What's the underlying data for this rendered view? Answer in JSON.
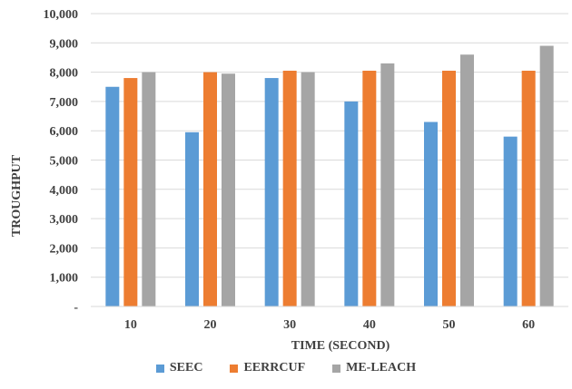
{
  "chart_data": {
    "type": "bar",
    "xlabel": "TIME (SECOND)",
    "ylabel": "TROUGHPUT",
    "categories": [
      "10",
      "20",
      "30",
      "40",
      "50",
      "60"
    ],
    "ylim": [
      0,
      10000
    ],
    "yticks": [
      {
        "value": 0,
        "label": "-"
      },
      {
        "value": 1000,
        "label": "1,000"
      },
      {
        "value": 2000,
        "label": "2,000"
      },
      {
        "value": 3000,
        "label": "3,000"
      },
      {
        "value": 4000,
        "label": "4,000"
      },
      {
        "value": 5000,
        "label": "5,000"
      },
      {
        "value": 6000,
        "label": "6,000"
      },
      {
        "value": 7000,
        "label": "7,000"
      },
      {
        "value": 8000,
        "label": "8,000"
      },
      {
        "value": 9000,
        "label": "9,000"
      },
      {
        "value": 10000,
        "label": "10,000"
      }
    ],
    "grid": true,
    "legend_position": "bottom",
    "series": [
      {
        "name": "SEEC",
        "color": "#5b9bd5",
        "values": [
          7500,
          5950,
          7800,
          7000,
          6300,
          5800
        ]
      },
      {
        "name": "EERRCUF",
        "color": "#ed7d31",
        "values": [
          7800,
          8000,
          8050,
          8050,
          8050,
          8050
        ]
      },
      {
        "name": "ME-LEACH",
        "color": "#a5a5a5",
        "values": [
          8000,
          7950,
          8000,
          8300,
          8600,
          8900
        ]
      }
    ]
  }
}
